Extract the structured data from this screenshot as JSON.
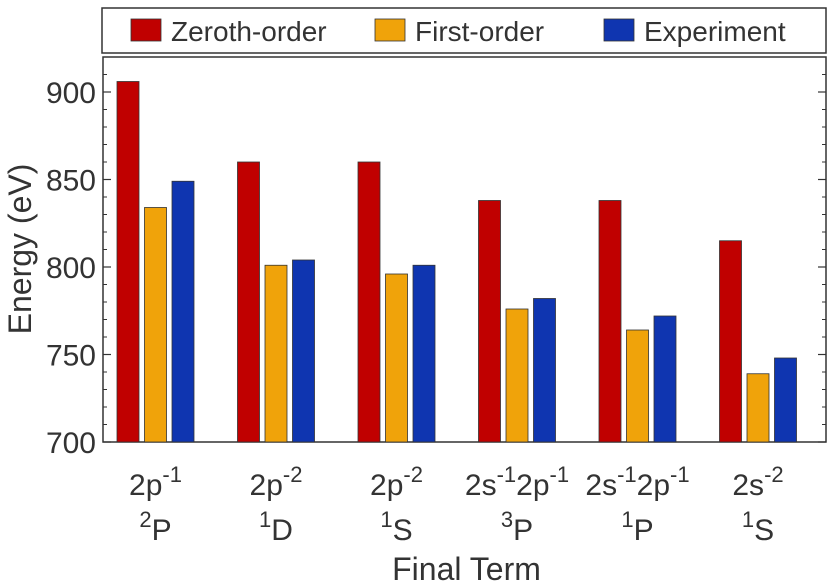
{
  "chart_data": {
    "type": "bar",
    "xlabel": "Final Term",
    "ylabel": "Energy (eV)",
    "ylim": [
      700,
      920
    ],
    "yticks": [
      700,
      750,
      800,
      850,
      900
    ],
    "grid": false,
    "legend_position": "top",
    "categories": [
      {
        "config": "2p",
        "config_sup": "-1",
        "term_sup": "2",
        "term": "P"
      },
      {
        "config": "2p",
        "config_sup": "-2",
        "term_sup": "1",
        "term": "D"
      },
      {
        "config": "2p",
        "config_sup": "-2",
        "term_sup": "1",
        "term": "S"
      },
      {
        "config": "2s",
        "config_sup": "-1",
        "config2": "2p",
        "config2_sup": "-1",
        "term_sup": "3",
        "term": "P"
      },
      {
        "config": "2s",
        "config_sup": "-1",
        "config2": "2p",
        "config2_sup": "-1",
        "term_sup": "1",
        "term": "P"
      },
      {
        "config": "2s",
        "config_sup": "-2",
        "term_sup": "1",
        "term": "S"
      }
    ],
    "series": [
      {
        "name": "Zeroth-order",
        "color": "#c00000",
        "values": [
          906,
          860,
          860,
          838,
          838,
          815
        ]
      },
      {
        "name": "First-order",
        "color": "#f0a30a",
        "values": [
          834,
          801,
          796,
          776,
          764,
          739
        ]
      },
      {
        "name": "Experiment",
        "color": "#0f35b0",
        "values": [
          849,
          804,
          801,
          782,
          772,
          748
        ]
      }
    ]
  }
}
